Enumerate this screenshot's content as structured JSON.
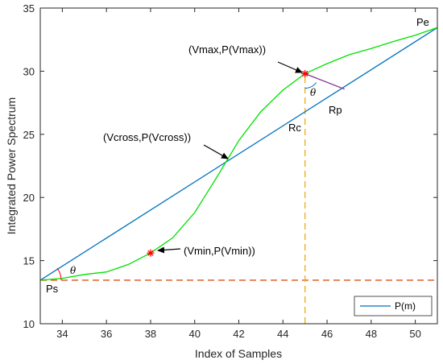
{
  "chart_data": {
    "type": "line",
    "xlabel": "Index of Samples",
    "ylabel": "Integrated Power Spectrum",
    "xlim": [
      33,
      51
    ],
    "ylim": [
      10,
      35
    ],
    "xticks": [
      "34",
      "36",
      "38",
      "40",
      "42",
      "44",
      "46",
      "48",
      "50"
    ],
    "yticks": [
      "10",
      "15",
      "20",
      "25",
      "30",
      "35"
    ],
    "grid": false,
    "legend_position": "bottom-right",
    "series": [
      {
        "name": "P(m)",
        "style": "line",
        "color": "#0072bd",
        "x": [
          33,
          51
        ],
        "y": [
          13.45,
          33.45
        ]
      },
      {
        "style": "line",
        "color": "#00e000",
        "x": [
          33,
          34,
          35,
          36,
          37,
          38,
          39,
          40,
          41,
          42,
          43,
          44,
          45,
          46,
          47,
          48,
          49,
          50,
          51
        ],
        "y": [
          13.45,
          13.6,
          13.9,
          14.1,
          14.7,
          15.6,
          16.8,
          18.8,
          21.6,
          24.5,
          26.8,
          28.5,
          29.8,
          30.6,
          31.3,
          31.8,
          32.35,
          32.85,
          33.45
        ]
      },
      {
        "style": "dashed",
        "color": "#d95319",
        "x": [
          33,
          51
        ],
        "y": [
          13.45,
          13.45
        ]
      },
      {
        "style": "dashed",
        "color": "#edb120",
        "x": [
          45,
          45
        ],
        "y": [
          10,
          29.8
        ]
      }
    ],
    "markers": [
      {
        "label": "(Vmax,P(Vmax))",
        "x": 45,
        "y": 29.8,
        "color": "#ff0000"
      },
      {
        "label": "(Vmin,P(Vmin))",
        "x": 38,
        "y": 15.6,
        "color": "#ff0000"
      }
    ],
    "annotations": {
      "vmax": "(Vmax,P(Vmax))",
      "vmin": "(Vmin,P(Vmin))",
      "vcross": "(Vcross,P(Vcross))",
      "pe": "Pe",
      "ps": "Ps",
      "rc": "Rc",
      "rp": "Rp",
      "theta": "θ"
    }
  }
}
